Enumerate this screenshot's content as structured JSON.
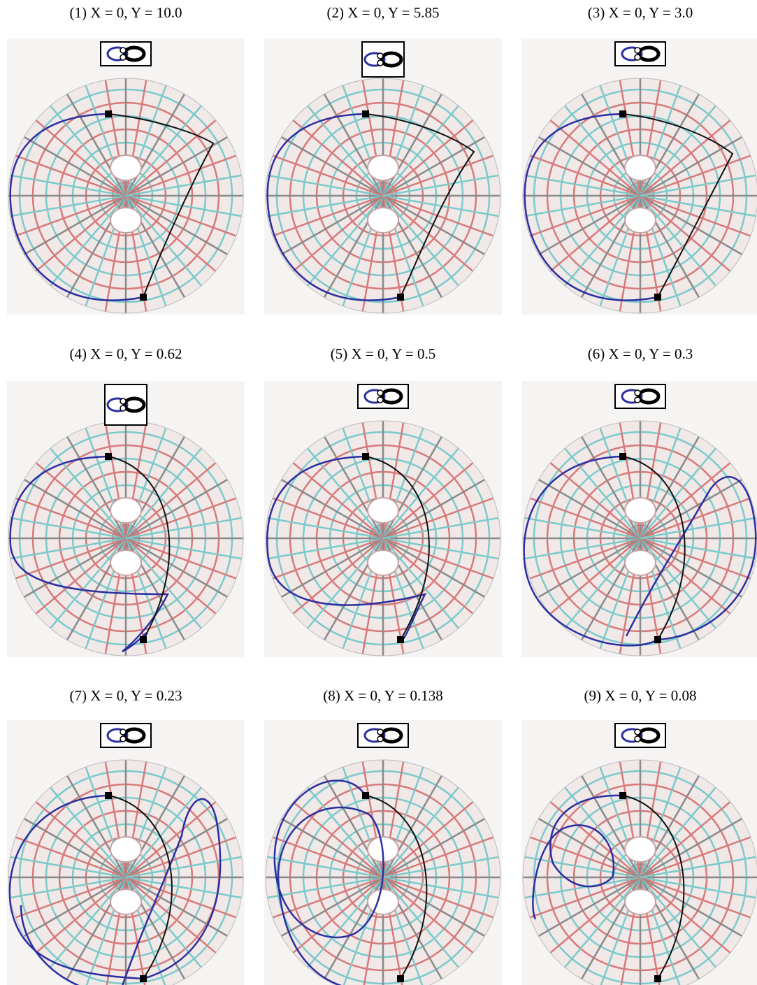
{
  "figure": {
    "panels": [
      {
        "caption": "(1) X = 0, Y = 10.0"
      },
      {
        "caption": "(2) X = 0, Y = 5.85"
      },
      {
        "caption": "(3) X = 0, Y = 3.0"
      },
      {
        "caption": "(4) X = 0, Y = 0.62"
      },
      {
        "caption": "(5) X = 0, Y = 0.5"
      },
      {
        "caption": "(6) X = 0, Y = 0.3"
      },
      {
        "caption": "(7) X = 0, Y = 0.23"
      },
      {
        "caption": "(8) X = 0, Y = 0.138"
      },
      {
        "caption": "(9) X = 0, Y = 0.08"
      }
    ]
  }
}
